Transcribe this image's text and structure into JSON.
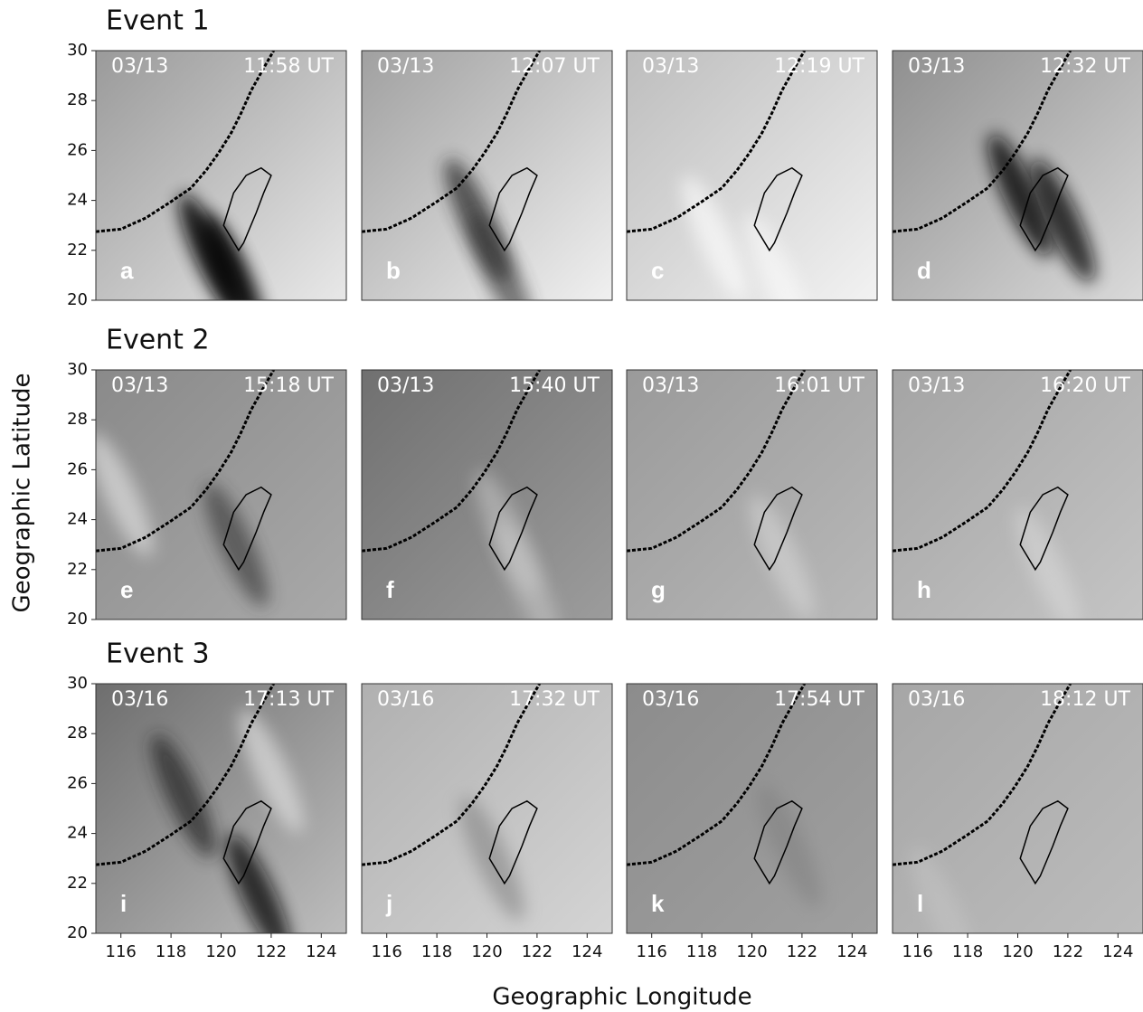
{
  "figure": {
    "ylabel": "Geographic Latitude",
    "xlabel": "Geographic Longitude",
    "xlim": [
      115,
      125
    ],
    "ylim": [
      20,
      30
    ],
    "xticks": [
      116,
      118,
      120,
      122,
      124
    ],
    "yticks": [
      20,
      22,
      24,
      26,
      28,
      30
    ],
    "events": [
      {
        "title": "Event 1",
        "panels": [
          {
            "date": "03/13",
            "time": "11:58 UT",
            "label": "a"
          },
          {
            "date": "03/13",
            "time": "12:07 UT",
            "label": "b"
          },
          {
            "date": "03/13",
            "time": "12:19 UT",
            "label": "c"
          },
          {
            "date": "03/13",
            "time": "12:32 UT",
            "label": "d"
          }
        ]
      },
      {
        "title": "Event 2",
        "panels": [
          {
            "date": "03/13",
            "time": "15:18 UT",
            "label": "e"
          },
          {
            "date": "03/13",
            "time": "15:40 UT",
            "label": "f"
          },
          {
            "date": "03/13",
            "time": "16:01 UT",
            "label": "g"
          },
          {
            "date": "03/13",
            "time": "16:20 UT",
            "label": "h"
          }
        ]
      },
      {
        "title": "Event 3",
        "panels": [
          {
            "date": "03/16",
            "time": "17:13 UT",
            "label": "i"
          },
          {
            "date": "03/16",
            "time": "17:32 UT",
            "label": "j"
          },
          {
            "date": "03/16",
            "time": "17:54 UT",
            "label": "k"
          },
          {
            "date": "03/16",
            "time": "18:12 UT",
            "label": "l"
          }
        ]
      }
    ]
  }
}
